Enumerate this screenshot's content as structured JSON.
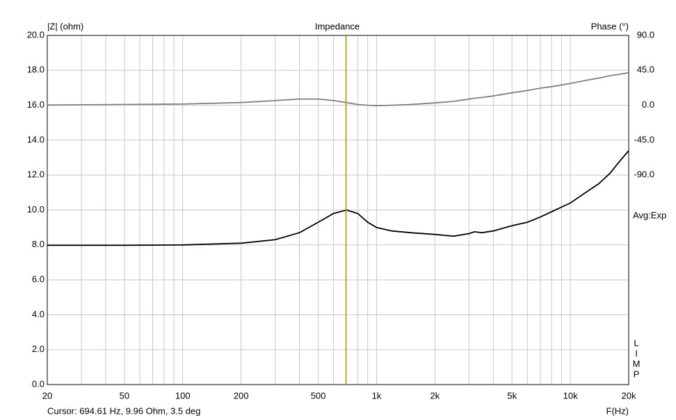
{
  "chart_data": {
    "type": "line",
    "title": "Impedance",
    "y_label": "|Z| (ohm)",
    "y2_label": "Phase (°)",
    "x_label": "F(Hz)",
    "side_label": "Avg:Exp",
    "side_letters": [
      "L",
      "I",
      "M",
      "P"
    ],
    "cursor_text": "Cursor: 694.61 Hz, 9.96 Ohm, 3.5 deg",
    "cursor_x": 694.61,
    "cursor_color": "#b8a800",
    "x_log": true,
    "grid": true,
    "xlim": [
      20,
      20000
    ],
    "xticks": [
      20,
      50,
      100,
      200,
      500,
      {
        "value": 1000,
        "label": "1k"
      },
      {
        "value": 2000,
        "label": "2k"
      },
      {
        "value": 5000,
        "label": "5k"
      },
      {
        "value": 10000,
        "label": "10k"
      },
      {
        "value": 20000,
        "label": "20k"
      }
    ],
    "xminor_ticks": [
      30,
      40,
      60,
      70,
      80,
      90,
      300,
      400,
      600,
      700,
      800,
      900,
      3000,
      4000,
      6000,
      7000,
      8000,
      9000
    ],
    "ylim": [
      0,
      20
    ],
    "yticks": [
      {
        "value": 0,
        "label": "0.0"
      },
      {
        "value": 2,
        "label": "2.0"
      },
      {
        "value": 4,
        "label": "4.0"
      },
      {
        "value": 6,
        "label": "6.0"
      },
      {
        "value": 8,
        "label": "8.0"
      },
      {
        "value": 10,
        "label": "10.0"
      },
      {
        "value": 12,
        "label": "12.0"
      },
      {
        "value": 14,
        "label": "14.0"
      },
      {
        "value": 16,
        "label": "16.0"
      },
      {
        "value": 18,
        "label": "18.0"
      },
      {
        "value": 20,
        "label": "20.0"
      }
    ],
    "y2lim": [
      -360,
      90
    ],
    "y2ticks": [
      {
        "value": -90,
        "label": "-90.0"
      },
      {
        "value": -45,
        "label": "-45.0"
      },
      {
        "value": 0,
        "label": "0.0"
      },
      {
        "value": 45,
        "label": "45.0"
      },
      {
        "value": 90,
        "label": "90.0"
      }
    ],
    "x": [
      20,
      50,
      100,
      200,
      300,
      400,
      500,
      600,
      700,
      800,
      900,
      1000,
      1200,
      1500,
      2000,
      2500,
      3000,
      3200,
      3500,
      4000,
      5000,
      6000,
      7000,
      8000,
      10000,
      12000,
      14000,
      16000,
      18000,
      20000
    ],
    "series": [
      {
        "name": "Impedance",
        "color": "#000000",
        "values": [
          7.98,
          7.98,
          8.0,
          8.1,
          8.3,
          8.7,
          9.3,
          9.8,
          10.0,
          9.8,
          9.3,
          9.0,
          8.8,
          8.7,
          8.6,
          8.5,
          8.65,
          8.75,
          8.7,
          8.8,
          9.1,
          9.3,
          9.6,
          9.9,
          10.4,
          11.0,
          11.5,
          12.1,
          12.8,
          13.4
        ]
      },
      {
        "name": "Phase",
        "color": "#808080",
        "axis": "y2",
        "values": [
          0.3,
          1.0,
          1.5,
          3.5,
          6,
          8,
          8,
          6,
          3.5,
          1,
          0,
          -0.5,
          0,
          1,
          3,
          5,
          8,
          9,
          10,
          12,
          16,
          19,
          22,
          24,
          28,
          32,
          35,
          38,
          40,
          42
        ]
      }
    ]
  }
}
